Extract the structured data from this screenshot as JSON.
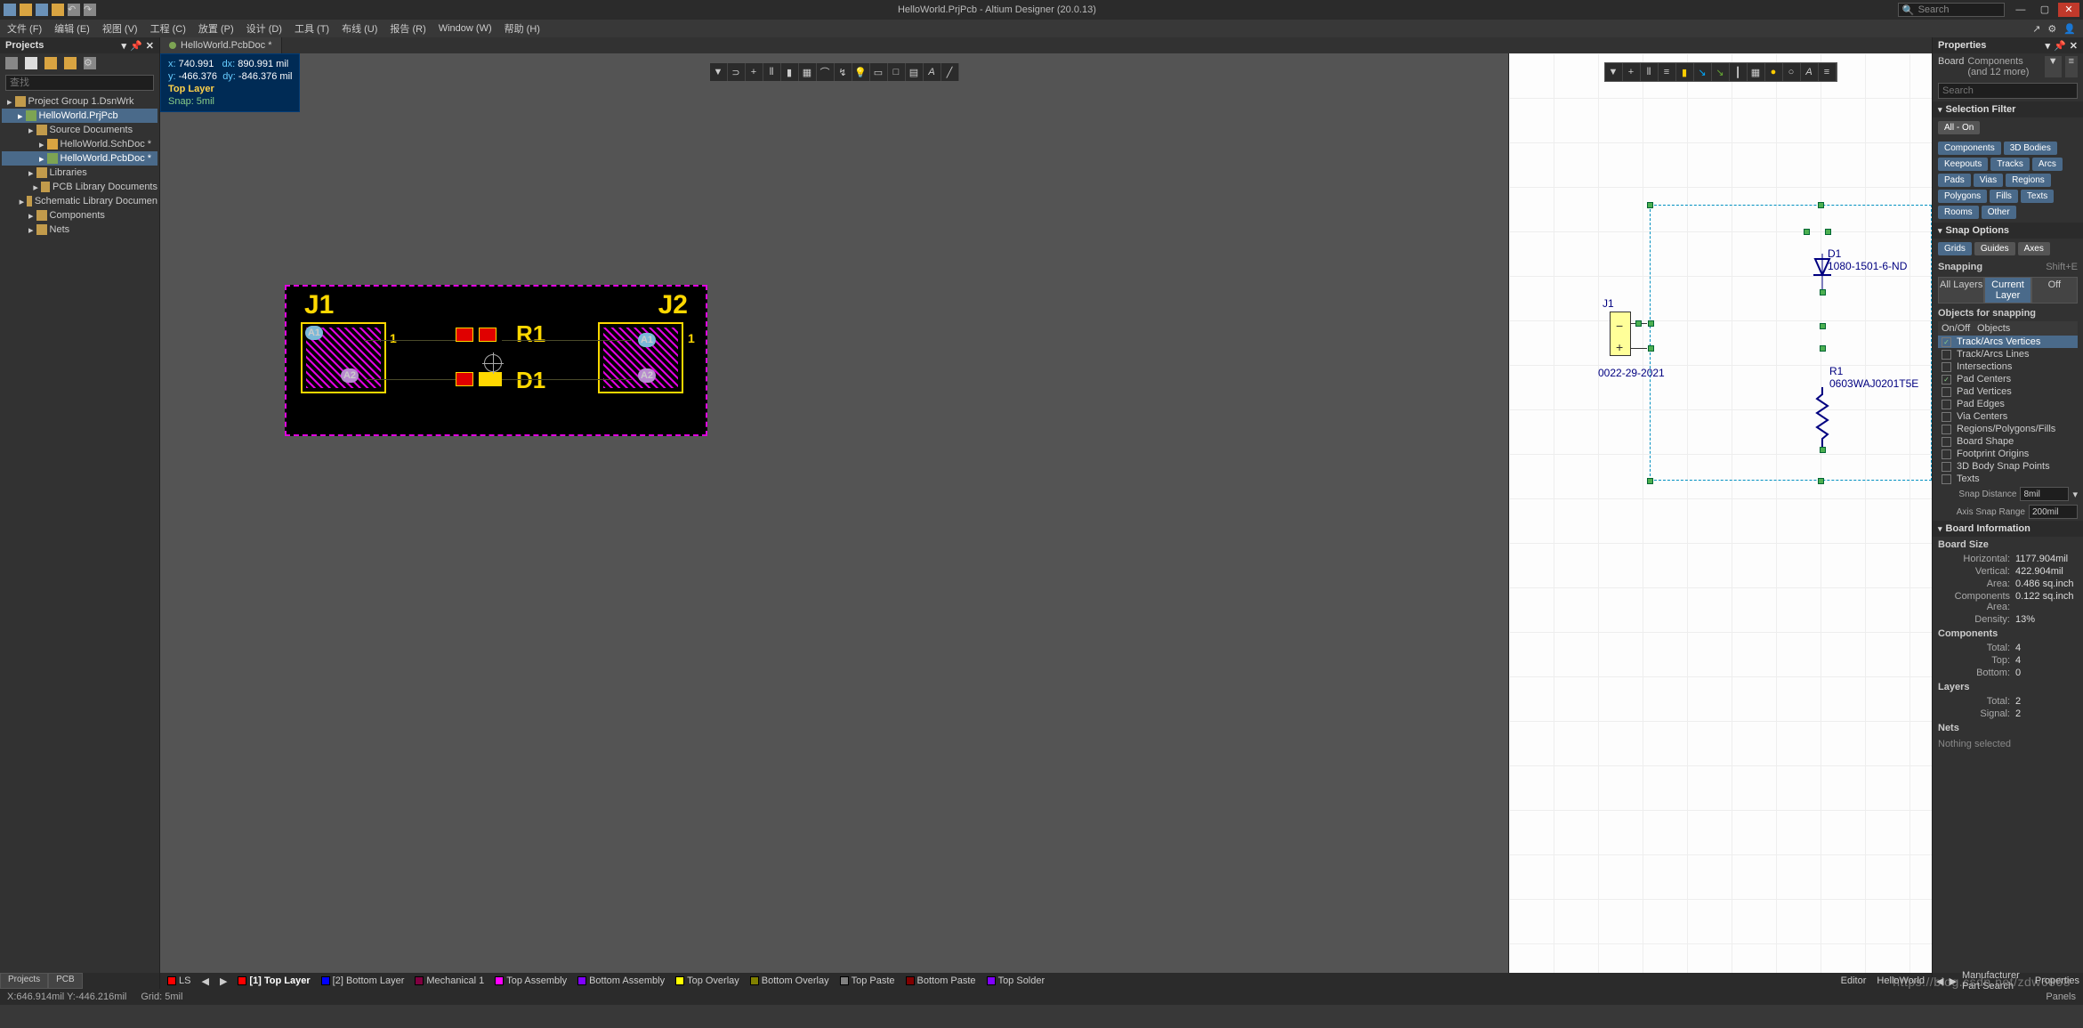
{
  "titlebar": {
    "title": "HelloWorld.PrjPcb - Altium Designer (20.0.13)",
    "search_placeholder": "Search"
  },
  "menubar": {
    "items": [
      "文件 (F)",
      "编辑 (E)",
      "视图 (V)",
      "工程 (C)",
      "放置 (P)",
      "设计 (D)",
      "工具 (T)",
      "布线 (U)",
      "报告 (R)",
      "Window (W)",
      "帮助 (H)"
    ]
  },
  "projects_panel": {
    "title": "Projects",
    "search_placeholder": "查找",
    "tree": [
      {
        "indent": 0,
        "icon": "fldicon",
        "label": "Project Group 1.DsnWrk",
        "sel": false
      },
      {
        "indent": 1,
        "icon": "prjicon",
        "label": "HelloWorld.PrjPcb",
        "sel": true
      },
      {
        "indent": 2,
        "icon": "fldicon",
        "label": "Source Documents",
        "sel": false
      },
      {
        "indent": 3,
        "icon": "ficon",
        "label": "HelloWorld.SchDoc *",
        "sel": false
      },
      {
        "indent": 3,
        "icon": "prjicon",
        "label": "HelloWorld.PcbDoc *",
        "sel": true
      },
      {
        "indent": 2,
        "icon": "fldicon",
        "label": "Libraries",
        "sel": false
      },
      {
        "indent": 3,
        "icon": "fldicon",
        "label": "PCB Library Documents",
        "sel": false
      },
      {
        "indent": 3,
        "icon": "fldicon",
        "label": "Schematic Library Documen",
        "sel": false
      },
      {
        "indent": 2,
        "icon": "fldicon",
        "label": "Components",
        "sel": false
      },
      {
        "indent": 2,
        "icon": "fldicon",
        "label": "Nets",
        "sel": false
      }
    ]
  },
  "doc_tabs": {
    "left": {
      "label": "HelloWorld.PcbDoc *",
      "color": "#7da453",
      "active": true
    },
    "right": {
      "label": "HelloWorld.SchDoc *",
      "color": "#d9a441",
      "active": false
    }
  },
  "headsup": {
    "x": "740.991",
    "dx": "890.991",
    "unit": "mil",
    "y": "-466.376",
    "dy": "-846.376",
    "layer": "Top Layer",
    "snap": "Snap: 5mil"
  },
  "pcb": {
    "silk": {
      "J1": "J1",
      "J2": "J2",
      "R1": "R1",
      "D1": "D1",
      "pin1a": "1",
      "pin1b": "1"
    },
    "pads": {
      "j1p1": {
        "label": "A1",
        "bg": "#7ab8d8"
      },
      "j1p2": {
        "label": "A2",
        "bg": "#b88ad0"
      },
      "j2p1": {
        "label": "A1",
        "bg": "#7ab8d8"
      },
      "j2p2": {
        "label": "A2",
        "bg": "#b88ad0"
      }
    }
  },
  "layer_bar": {
    "ls": "LS",
    "items": [
      {
        "color": "#ff0000",
        "label": "[1] Top Layer",
        "bold": true
      },
      {
        "color": "#0000ff",
        "label": "[2] Bottom Layer"
      },
      {
        "color": "#800040",
        "label": "Mechanical 1"
      },
      {
        "color": "#ff00ff",
        "label": "Top Assembly"
      },
      {
        "color": "#8000ff",
        "label": "Bottom Assembly"
      },
      {
        "color": "#ffff00",
        "label": "Top Overlay"
      },
      {
        "color": "#808000",
        "label": "Bottom Overlay"
      },
      {
        "color": "#808080",
        "label": "Top Paste"
      },
      {
        "color": "#800000",
        "label": "Bottom Paste"
      },
      {
        "color": "#8000ff",
        "label": "Top Solder"
      }
    ],
    "editor": "Editor",
    "design": "HelloWorld"
  },
  "schematic": {
    "j1": {
      "ref": "J1",
      "value": "0022-29-2021"
    },
    "d1": {
      "ref": "D1",
      "value": "1080-1501-6-ND"
    },
    "r1": {
      "ref": "R1",
      "value": "0603WAJ0201T5E"
    }
  },
  "props": {
    "title": "Properties",
    "object": "Board",
    "filter_summary": "Components (and 12 more)",
    "search_placeholder": "Search",
    "sections": {
      "selection_filter": "Selection Filter",
      "all_on": "All - On",
      "filters": [
        "Components",
        "3D Bodies",
        "Keepouts",
        "Tracks",
        "Arcs",
        "Pads",
        "Vias",
        "Regions",
        "Polygons",
        "Fills",
        "Texts",
        "Rooms",
        "Other"
      ],
      "snap_options": "Snap Options",
      "grids": "Grids",
      "guides": "Guides",
      "axes": "Axes",
      "snapping": "Snapping",
      "snapping_hotkey": "Shift+E",
      "all_layers": "All Layers",
      "current_layer": "Current Layer",
      "off": "Off",
      "objects_for": "Objects for snapping",
      "col_onoff": "On/Off",
      "col_objects": "Objects",
      "snap_objects": [
        {
          "on": true,
          "label": "Track/Arcs Vertices",
          "sel": true
        },
        {
          "on": false,
          "label": "Track/Arcs Lines"
        },
        {
          "on": false,
          "label": "Intersections"
        },
        {
          "on": true,
          "label": "Pad Centers"
        },
        {
          "on": false,
          "label": "Pad Vertices"
        },
        {
          "on": false,
          "label": "Pad Edges"
        },
        {
          "on": false,
          "label": "Via Centers"
        },
        {
          "on": false,
          "label": "Regions/Polygons/Fills"
        },
        {
          "on": false,
          "label": "Board Shape"
        },
        {
          "on": false,
          "label": "Footprint Origins"
        },
        {
          "on": false,
          "label": "3D Body Snap Points"
        },
        {
          "on": false,
          "label": "Texts"
        }
      ],
      "snap_distance_label": "Snap Distance",
      "snap_distance": "8mil",
      "axis_range_label": "Axis Snap Range",
      "axis_range": "200mil",
      "board_info": "Board Information",
      "board_size": "Board Size",
      "horizontal": "Horizontal:",
      "horizontal_v": "1177.904mil",
      "vertical": "Vertical:",
      "vertical_v": "422.904mil",
      "area": "Area:",
      "area_v": "0.486 sq.inch",
      "comp_area": "Components Area:",
      "comp_area_v": "0.122 sq.inch",
      "density": "Density:",
      "density_v": "13%",
      "components": "Components",
      "total": "Total:",
      "total_v": "4",
      "top": "Top:",
      "top_v": "4",
      "bottom": "Bottom:",
      "bottom_v": "0",
      "layers": "Layers",
      "l_total": "Total:",
      "l_total_v": "2",
      "signal": "Signal:",
      "signal_v": "2",
      "nets": "Nets",
      "nothing": "Nothing selected"
    }
  },
  "bottom_tabs": {
    "projects": "Projects",
    "pcb": "PCB"
  },
  "statusbar": {
    "coords": "X:646.914mil Y:-446.216mil",
    "grid": "Grid: 5mil",
    "mps": "Manufacturer Part Search",
    "props": "Properties",
    "panels": "Panels"
  },
  "watermark": "https://blog.csdn.net/zdw6868"
}
